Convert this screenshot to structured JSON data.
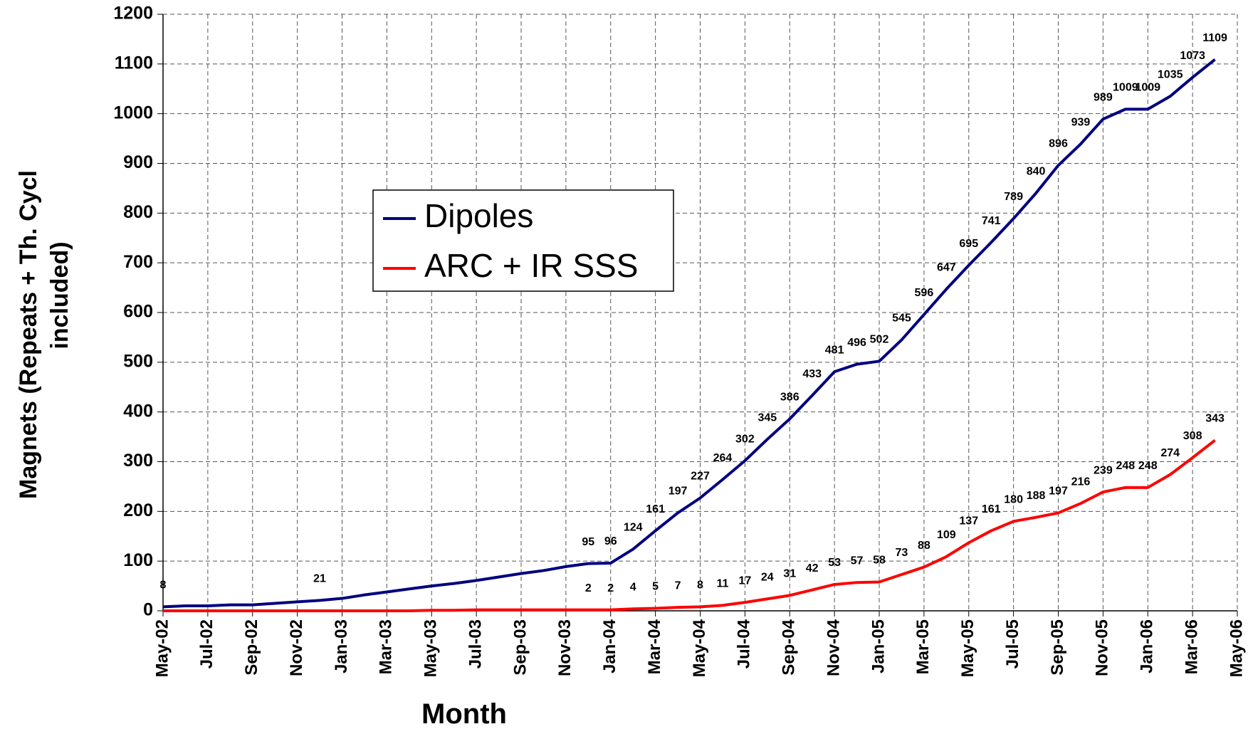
{
  "chart_data": {
    "type": "line",
    "ylabel_lines": [
      "Magnets   (Repeats + Th. Cycl",
      "included)"
    ],
    "xlabel": "Month",
    "categories": [
      "May-02",
      null,
      "Jul-02",
      null,
      "Sep-02",
      null,
      "Nov-02",
      null,
      "Jan-03",
      null,
      "Mar-03",
      null,
      "May-03",
      null,
      "Jul-03",
      null,
      "Sep-03",
      null,
      "Nov-03",
      null,
      "Jan-04",
      null,
      "Mar-04",
      null,
      "May-04",
      null,
      "Jul-04",
      null,
      "Sep-04",
      null,
      "Nov-04",
      null,
      "Jan-05",
      null,
      "Mar-05",
      null,
      "May-05",
      null,
      "Jul-05",
      null,
      "Sep-05",
      null,
      "Nov-05",
      null,
      "Jan-06",
      null,
      "Mar-06",
      null,
      "May-06"
    ],
    "series": [
      {
        "name": "Dipoles",
        "color": "#000080",
        "values": [
          8,
          10,
          10,
          12,
          12,
          15,
          18,
          21,
          25,
          32,
          38,
          44,
          50,
          55,
          61,
          68,
          75,
          81,
          89,
          95,
          96,
          124,
          161,
          197,
          227,
          264,
          302,
          345,
          386,
          433,
          481,
          496,
          502,
          545,
          596,
          647,
          695,
          741,
          789,
          840,
          896,
          939,
          989,
          1009,
          1009,
          1035,
          1073,
          1109,
          null
        ],
        "value_labels": [
          "8",
          null,
          null,
          null,
          null,
          null,
          null,
          "21",
          null,
          null,
          null,
          null,
          null,
          null,
          null,
          null,
          null,
          null,
          null,
          "95",
          "96",
          "124",
          "161",
          "197",
          "227",
          "264",
          "302",
          "345",
          "386",
          "433",
          "481",
          "496",
          "502",
          "545",
          "596",
          "647",
          "695",
          "741",
          "789",
          "840",
          "896",
          "939",
          "989",
          "1009",
          "1009",
          "1035",
          "1073",
          "1109",
          null
        ]
      },
      {
        "name": "ARC + IR SSS",
        "color": "#ff0000",
        "values": [
          0,
          0,
          0,
          0,
          0,
          0,
          0,
          0,
          0,
          0,
          0,
          0,
          1,
          1,
          2,
          2,
          2,
          2,
          2,
          2,
          2,
          4,
          5,
          7,
          8,
          11,
          17,
          24,
          31,
          42,
          53,
          57,
          58,
          73,
          88,
          109,
          137,
          161,
          180,
          188,
          197,
          216,
          239,
          248,
          248,
          274,
          308,
          343,
          null
        ],
        "value_labels": [
          null,
          null,
          null,
          null,
          null,
          null,
          null,
          null,
          null,
          null,
          null,
          null,
          null,
          null,
          null,
          null,
          null,
          null,
          null,
          "2",
          "2",
          "4",
          "5",
          "7",
          "8",
          "11",
          "17",
          "24",
          "31",
          "42",
          "53",
          "57",
          "58",
          "73",
          "88",
          "109",
          "137",
          "161",
          "180",
          "188",
          "197",
          "216",
          "239",
          "248",
          "248",
          "274",
          "308",
          "343",
          null
        ]
      }
    ],
    "ylim": [
      0,
      1200
    ],
    "yticks": [
      0,
      100,
      200,
      300,
      400,
      500,
      600,
      700,
      800,
      900,
      1000,
      1100,
      1200
    ],
    "grid": true,
    "legend": "center-left"
  }
}
